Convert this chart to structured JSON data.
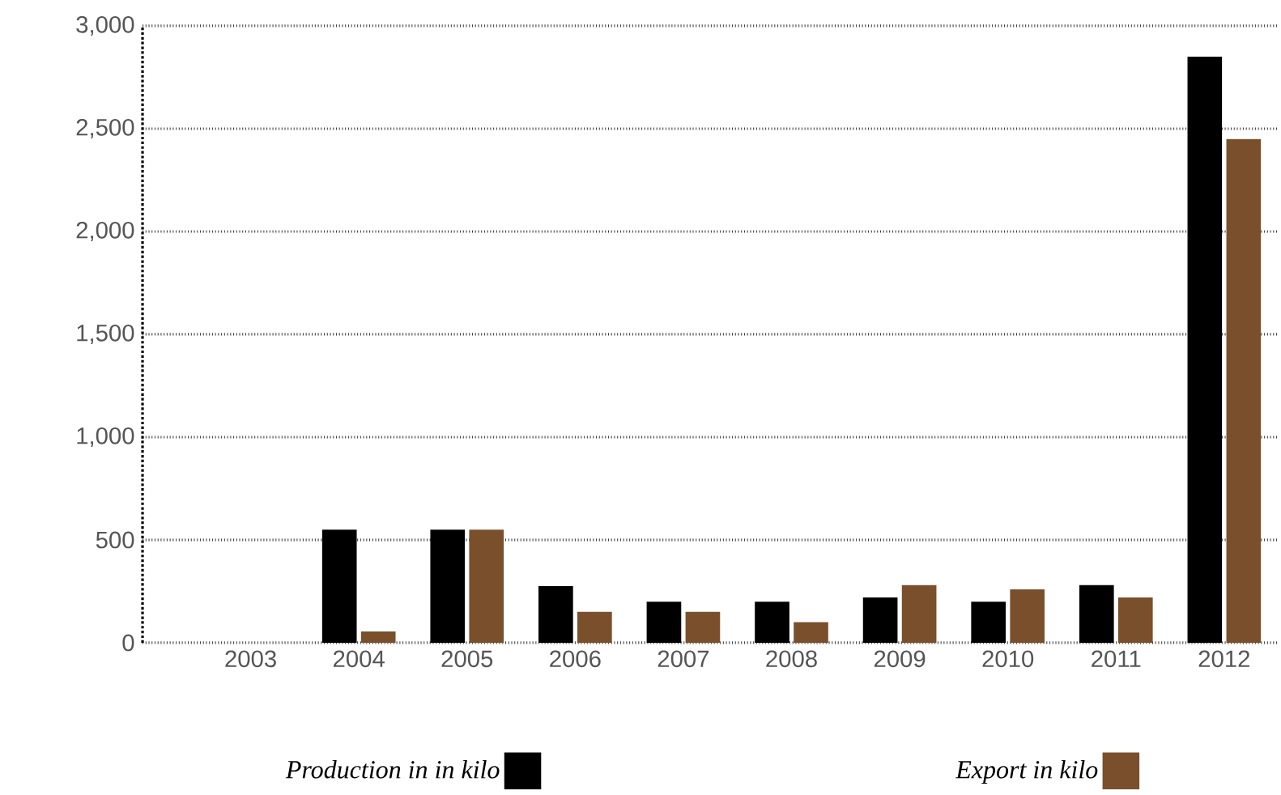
{
  "chart_data": {
    "type": "bar",
    "categories": [
      "2003",
      "2004",
      "2005",
      "2006",
      "2007",
      "2008",
      "2009",
      "2010",
      "2011",
      "2012"
    ],
    "series": [
      {
        "name": "Production in in kilo",
        "color": "#000000",
        "values": [
          null,
          550,
          550,
          275,
          200,
          200,
          220,
          200,
          280,
          2850
        ]
      },
      {
        "name": "Export in kilo",
        "color": "#7a4f2c",
        "values": [
          null,
          55,
          550,
          150,
          150,
          100,
          280,
          260,
          220,
          2450
        ]
      }
    ],
    "ylim": [
      0,
      3000
    ],
    "yticks": [
      {
        "value": 0,
        "label": "0"
      },
      {
        "value": 500,
        "label": "500"
      },
      {
        "value": 1000,
        "label": "1,000"
      },
      {
        "value": 1500,
        "label": "1,500"
      },
      {
        "value": 2000,
        "label": "2,000"
      },
      {
        "value": 2500,
        "label": "2,500"
      },
      {
        "value": 3000,
        "label": "3,000"
      }
    ],
    "grid": "y",
    "legend": "bottom"
  }
}
